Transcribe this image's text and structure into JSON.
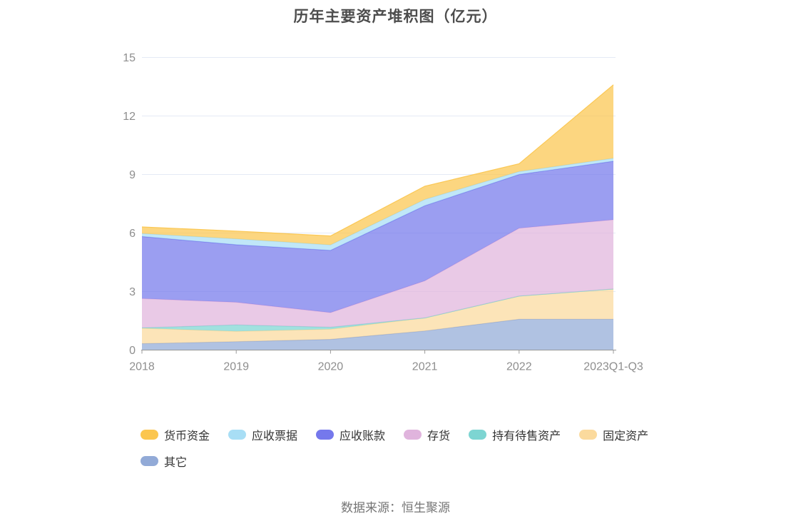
{
  "page": {
    "source": "数据来源：恒生聚源"
  },
  "chart_data": {
    "type": "area",
    "stacked": true,
    "title": "历年主要资产堆积图（亿元）",
    "unit": "亿元",
    "grid": true,
    "legend_position": "bottom",
    "categories": [
      "2018",
      "2019",
      "2020",
      "2021",
      "2022",
      "2023Q1-Q3"
    ],
    "y_axis": {
      "min": 0,
      "max": 15,
      "ticks": [
        0,
        3,
        6,
        9,
        12,
        15
      ]
    },
    "series": [
      {
        "key": "other",
        "name": "其它",
        "color": "#92AAD7",
        "values": [
          0.33,
          0.43,
          0.55,
          0.98,
          1.58,
          1.58
        ]
      },
      {
        "key": "fixed-assets",
        "name": "固定资产",
        "color": "#FBDA9D",
        "values": [
          0.79,
          0.53,
          0.52,
          0.67,
          1.19,
          1.55
        ]
      },
      {
        "key": "held-for-sale-assets",
        "name": "持有待售资产",
        "color": "#7DD5D2",
        "values": [
          0.02,
          0.33,
          0.1,
          0.0,
          0.0,
          0.0
        ]
      },
      {
        "key": "inventory",
        "name": "存货",
        "color": "#E0B4DD",
        "values": [
          1.5,
          1.16,
          0.75,
          1.9,
          3.48,
          3.55
        ]
      },
      {
        "key": "accounts-receivable",
        "name": "应收账款",
        "color": "#7578EC",
        "values": [
          3.18,
          2.95,
          3.19,
          3.85,
          2.75,
          3.0
        ]
      },
      {
        "key": "notes-receivable",
        "name": "应收票据",
        "color": "#A8DEF5",
        "values": [
          0.15,
          0.3,
          0.28,
          0.32,
          0.15,
          0.15
        ]
      },
      {
        "key": "monetary-funds",
        "name": "货币资金",
        "color": "#FBC64F",
        "values": [
          0.34,
          0.4,
          0.46,
          0.68,
          0.4,
          3.77
        ]
      }
    ],
    "stack_totals": [
      6.31,
      6.1,
      5.85,
      8.4,
      9.55,
      13.6
    ]
  }
}
